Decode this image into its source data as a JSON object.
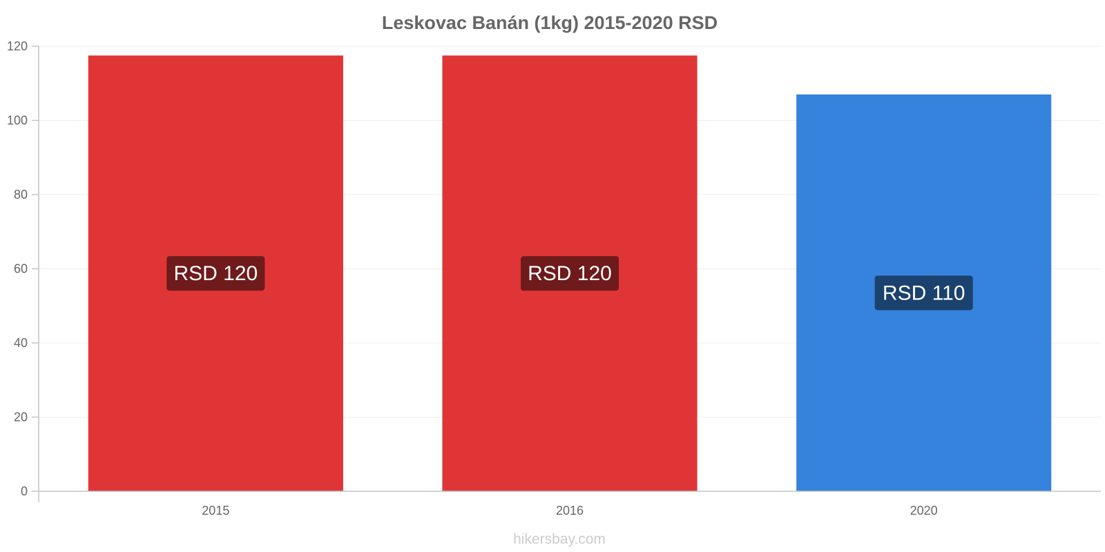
{
  "chart_data": {
    "type": "bar",
    "title": "Leskovac Banán (1kg) 2015-2020 RSD",
    "xlabel": "",
    "ylabel": "",
    "categories": [
      "2015",
      "2016",
      "2020"
    ],
    "values": [
      117.5,
      117.5,
      107
    ],
    "data_labels": [
      "RSD 120",
      "RSD 120",
      "RSD 110"
    ],
    "bar_colors": [
      "#e03536",
      "#e03536",
      "#3583dd"
    ],
    "label_bg_colors": [
      "#6f1a1b",
      "#6f1a1b",
      "#1b416e"
    ],
    "ylim": [
      0,
      120
    ],
    "yticks": [
      "0",
      "20",
      "40",
      "60",
      "80",
      "100",
      "120"
    ],
    "grid": true,
    "legend": "none"
  },
  "watermark": "hikersbay.com"
}
